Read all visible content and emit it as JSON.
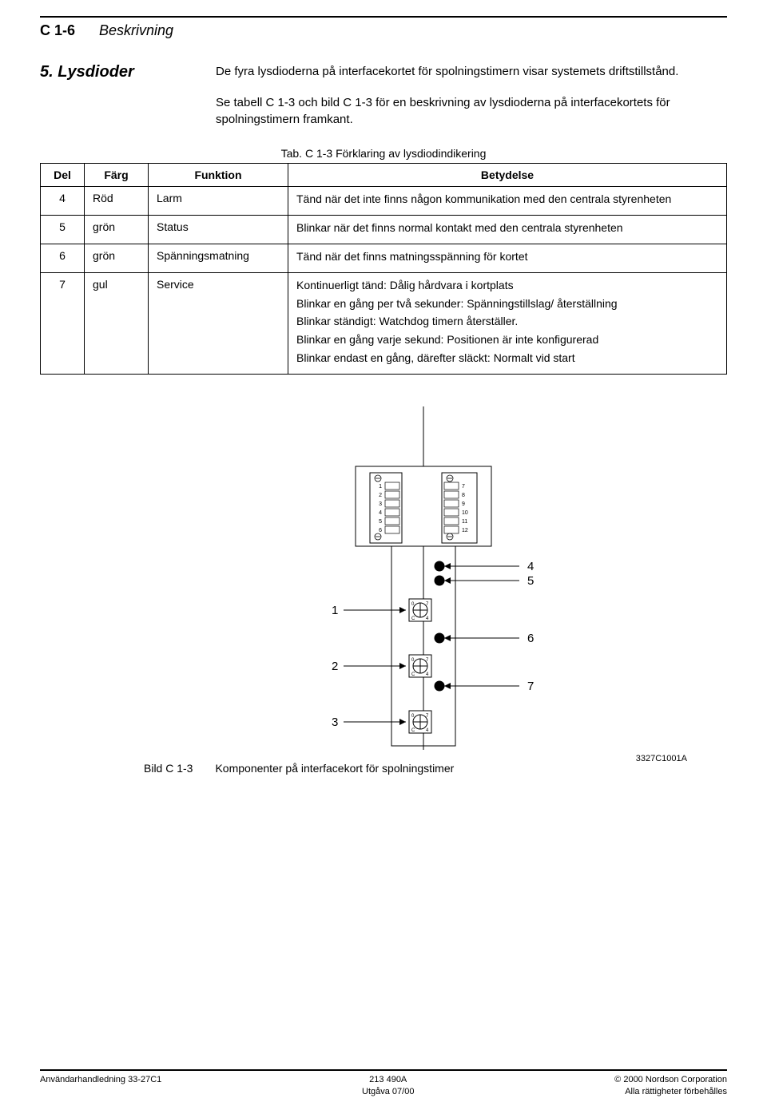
{
  "header": {
    "page_num": "C 1-6",
    "section_header": "Beskrivning"
  },
  "section": {
    "number_title": "5.  Lysdioder",
    "intro1": "De fyra lysdioderna på interfacekortet för spolningstimern visar systemets driftstillstånd.",
    "intro2": "Se tabell C 1-3 och bild C 1-3 för en beskrivning av lysdioderna på interfacekortets för spolningstimern framkant."
  },
  "table": {
    "caption": "Tab. C 1-3  Förklaring av lysdiodindikering",
    "headers": {
      "del": "Del",
      "farg": "Färg",
      "funktion": "Funktion",
      "betydelse": "Betydelse"
    },
    "rows": [
      {
        "del": "4",
        "farg": "Röd",
        "funktion": "Larm",
        "betydelse": [
          "Tänd när det inte finns någon kommunikation med den centrala styrenheten"
        ]
      },
      {
        "del": "5",
        "farg": "grön",
        "funktion": "Status",
        "betydelse": [
          "Blinkar när det finns normal kontakt med den centrala styrenheten"
        ]
      },
      {
        "del": "6",
        "farg": "grön",
        "funktion": "Spänningsmatning",
        "betydelse": [
          "Tänd när det finns matningsspänning för kortet"
        ]
      },
      {
        "del": "7",
        "farg": "gul",
        "funktion": "Service",
        "betydelse": [
          "Kontinuerligt tänd:  Dålig hårdvara i kortplats",
          "Blinkar en gång per två sekunder:  Spänningstillslag/ återställning",
          "Blinkar ständigt:  Watchdog timern återställer.",
          "Blinkar en gång varje sekund:  Positionen är inte konfigurerad",
          "Blinkar endast en gång, därefter släckt:  Normalt vid start"
        ]
      }
    ]
  },
  "figure": {
    "labels_left": [
      "1",
      "2",
      "3"
    ],
    "labels_right": [
      "4",
      "5",
      "6",
      "7"
    ],
    "terminal_left": [
      "1",
      "2",
      "3",
      "4",
      "5",
      "6"
    ],
    "terminal_right": [
      "7",
      "8",
      "9",
      "10",
      "11",
      "12"
    ],
    "code": "3327C1001A",
    "caption_label": "Bild C 1-3",
    "caption_text": "Komponenter på interfacekort för spolningstimer"
  },
  "footer": {
    "left": "Användarhandledning 33-27C1",
    "center1": "213 490A",
    "center2": "Utgåva 07/00",
    "right1": "© 2000 Nordson Corporation",
    "right2": "Alla rättigheter förbehålles"
  },
  "colors": {
    "text": "#000000",
    "bg": "#ffffff",
    "line": "#000000"
  }
}
